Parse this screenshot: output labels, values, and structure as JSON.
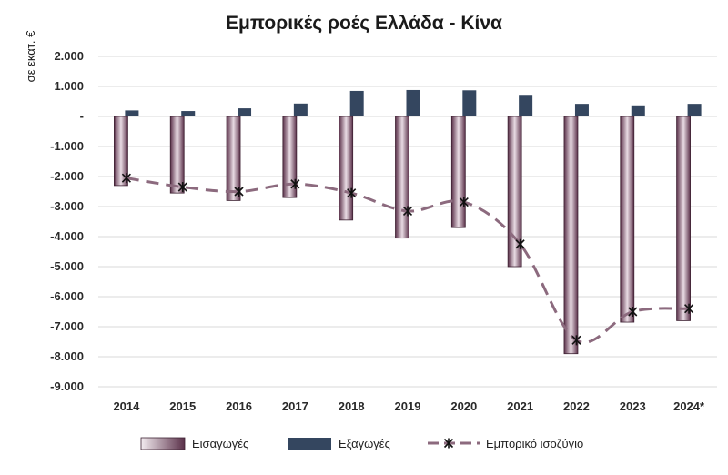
{
  "chart_data": {
    "type": "bar",
    "title": "Εμπορικές ροές Ελλάδα - Κίνα",
    "ylabel": "σε εκατ. €",
    "xlabel": "",
    "categories": [
      "2014",
      "2015",
      "2016",
      "2017",
      "2018",
      "2019",
      "2020",
      "2021",
      "2022",
      "2023",
      "2024*"
    ],
    "ylim": [
      -9000,
      2000
    ],
    "yticks": [
      2000,
      1000,
      0,
      -1000,
      -2000,
      -3000,
      -4000,
      -5000,
      -6000,
      -7000,
      -8000,
      -9000
    ],
    "ytick_labels": [
      "2.000",
      "1.000",
      "-",
      "-1.000",
      "-2.000",
      "-3.000",
      "-4.000",
      "-5.000",
      "-6.000",
      "-7.000",
      "-8.000",
      "-9.000"
    ],
    "grid": true,
    "legend_position": "bottom",
    "series": [
      {
        "name": "Εισαγωγές",
        "type": "bar",
        "color": "#6b3f58",
        "values": [
          -2300,
          -2550,
          -2800,
          -2700,
          -3450,
          -4050,
          -3700,
          -5000,
          -7900,
          -6850,
          -6800
        ]
      },
      {
        "name": "Εξαγωγές",
        "type": "bar",
        "color": "#34465f",
        "values": [
          200,
          180,
          270,
          430,
          850,
          880,
          870,
          720,
          420,
          370,
          420
        ]
      },
      {
        "name": "Εμπορικό ισοζύγιο",
        "type": "line",
        "color": "#8c6a7e",
        "values": [
          -2050,
          -2350,
          -2500,
          -2250,
          -2550,
          -3150,
          -2850,
          -4250,
          -7450,
          -6500,
          -6400
        ]
      }
    ]
  }
}
